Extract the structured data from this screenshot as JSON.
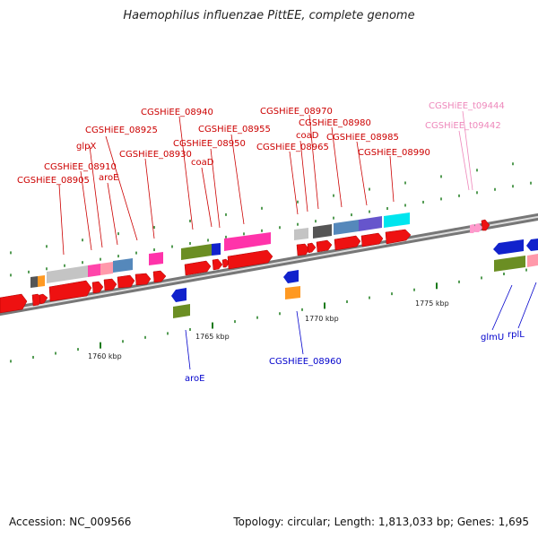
{
  "title": "Haemophilus influenzae PittEE, complete genome",
  "footer": {
    "accession": "Accession: NC_009566",
    "topology": "Topology: circular; Length: 1,813,033 bp; Genes: 1,695"
  },
  "colors": {
    "cds_red": "#ee1111",
    "label_red": "#cc0000",
    "label_blue": "#0000cc",
    "label_pink": "#ee88bb",
    "tick_green": "#1a7a1a"
  },
  "scale_labels": [
    "1760 kbp",
    "1765 kbp",
    "1770 kbp",
    "1775 kbp"
  ],
  "upper_labels": [
    "CGSHiEE_08905",
    "CGSHiEE_08910",
    "glpX",
    "aroE",
    "CGSHiEE_08925",
    "CGSHiEE_08930",
    "CGSHiEE_08940",
    "coaD",
    "CGSHiEE_08950",
    "CGSHiEE_08955",
    "CGSHiEE_08965",
    "coaD",
    "CGSHiEE_08970",
    "CGSHiEE_08980",
    "CGSHiEE_08985",
    "CGSHiEE_08990",
    "CGSHiEE_t09442",
    "CGSHiEE_t09444"
  ],
  "lower_labels": [
    "aroE",
    "CGSHiEE_08960",
    "glmU",
    "rplL"
  ]
}
